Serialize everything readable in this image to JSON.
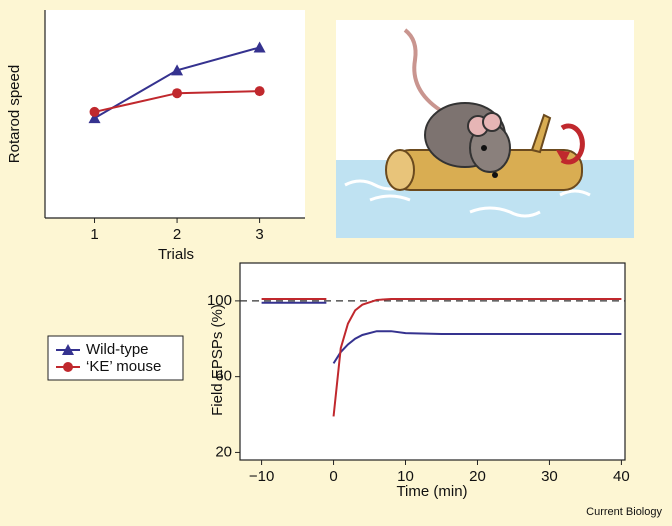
{
  "chart_data": [
    {
      "type": "line",
      "x_label": "Trials",
      "y_label": "Rotarod speed",
      "x": [
        1,
        2,
        3
      ],
      "xlim": [
        0.4,
        3.55
      ],
      "xticks": [
        1,
        2,
        3
      ],
      "ylim": [
        0,
        100
      ],
      "frame": "left-bottom",
      "series": [
        {
          "color": "#35328f",
          "marker": "triangle",
          "values": [
            48,
            71,
            82
          ]
        },
        {
          "color": "#c0282d",
          "marker": "circle",
          "values": [
            51,
            60,
            61
          ]
        }
      ]
    },
    {
      "type": "line",
      "x_label": "Time (min)",
      "y_label": "Field EPSPs (%)",
      "x": [
        -10,
        -1,
        -0.5,
        0,
        1,
        2,
        3,
        4,
        6,
        8,
        10,
        15,
        20,
        30,
        40
      ],
      "xlim": [
        -13,
        40.5
      ],
      "xticks": [
        {
          "value": -10,
          "label": "−10"
        },
        0,
        10,
        20,
        30,
        40
      ],
      "ylim": [
        16,
        120
      ],
      "yticks": [
        20,
        60,
        100
      ],
      "reference_line": 100,
      "frame": "box",
      "legend": "left",
      "series": [
        {
          "name": "Wild-type",
          "color": "#35328f",
          "marker": "triangle",
          "values": [
            99,
            99,
            null,
            67,
            73,
            77,
            80,
            82,
            84,
            84,
            83,
            82.5,
            82.5,
            82.5,
            82.5
          ]
        },
        {
          "name": "‘KE’ mouse",
          "color": "#c0282d",
          "marker": "circle",
          "values": [
            101,
            101,
            null,
            39,
            75,
            88,
            95,
            98,
            100.5,
            101,
            101,
            101,
            101,
            101,
            101
          ]
        }
      ]
    }
  ],
  "credit": "Current Biology"
}
